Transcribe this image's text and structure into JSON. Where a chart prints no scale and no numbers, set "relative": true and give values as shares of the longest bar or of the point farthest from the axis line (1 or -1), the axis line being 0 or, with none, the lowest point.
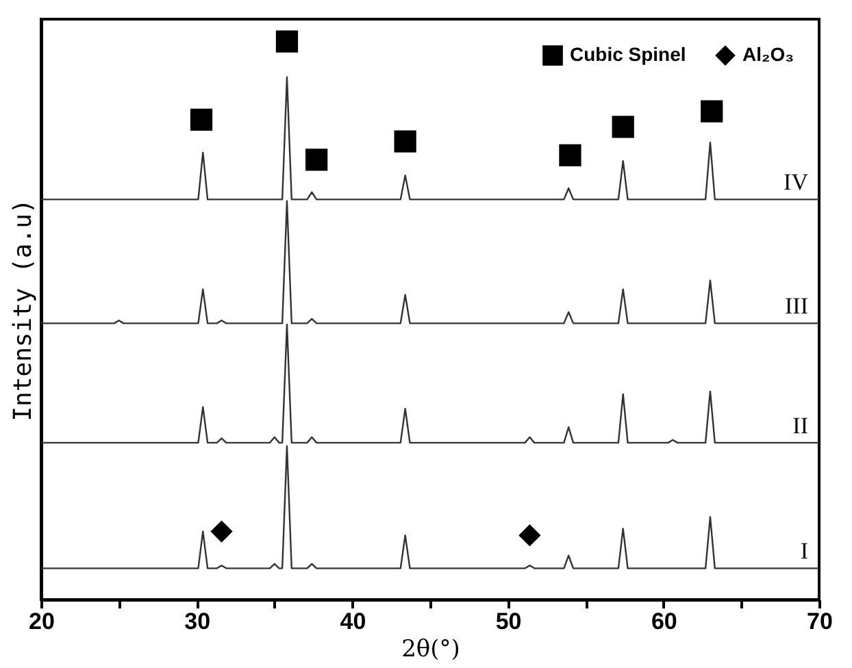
{
  "chart_data": {
    "type": "line",
    "relative": true,
    "xlabel": "2θ(°)",
    "ylabel": "Intensity (a.u)",
    "xlim": [
      20,
      70
    ],
    "xticks": [
      20,
      {
        "value": 25,
        "label": null
      },
      30,
      {
        "value": 35,
        "label": null
      },
      40,
      {
        "value": 45,
        "label": null
      },
      50,
      {
        "value": 55,
        "label": null
      },
      60,
      {
        "value": 65,
        "label": null
      },
      70
    ],
    "grid": false,
    "legend": "top right",
    "marker": "none",
    "series": [
      {
        "name": "I",
        "color": "#333333",
        "x": [
          20,
          30.1,
          30.4,
          30.7,
          31.3,
          31.6,
          31.9,
          34.7,
          35.0,
          35.3,
          35.5,
          35.8,
          36.1,
          37.1,
          37.4,
          37.7,
          43.1,
          43.4,
          43.7,
          51.1,
          51.4,
          51.7,
          53.6,
          53.9,
          54.2,
          57.1,
          57.4,
          57.7,
          62.7,
          63.0,
          63.3,
          70
        ],
        "values": [
          0.056,
          0.056,
          0.122,
          0.056,
          0.056,
          0.061,
          0.056,
          0.056,
          0.064,
          0.056,
          0.056,
          0.275,
          0.056,
          0.056,
          0.064,
          0.056,
          0.056,
          0.115,
          0.056,
          0.056,
          0.061,
          0.056,
          0.056,
          0.079,
          0.056,
          0.056,
          0.127,
          0.056,
          0.056,
          0.148,
          0.056,
          0.056
        ]
      },
      {
        "name": "II",
        "color": "#333333",
        "x": [
          20,
          30.1,
          30.4,
          30.7,
          31.3,
          31.6,
          31.9,
          34.7,
          35.0,
          35.3,
          35.5,
          35.8,
          36.1,
          37.1,
          37.4,
          37.7,
          43.1,
          43.4,
          43.7,
          51.1,
          51.4,
          51.7,
          53.6,
          53.9,
          54.2,
          57.1,
          57.4,
          57.7,
          60.3,
          60.6,
          60.9,
          62.7,
          63.0,
          63.3,
          70
        ],
        "values": [
          0.281,
          0.281,
          0.345,
          0.281,
          0.281,
          0.289,
          0.281,
          0.281,
          0.291,
          0.281,
          0.281,
          0.493,
          0.281,
          0.281,
          0.291,
          0.281,
          0.281,
          0.342,
          0.281,
          0.281,
          0.291,
          0.281,
          0.281,
          0.309,
          0.281,
          0.281,
          0.368,
          0.281,
          0.281,
          0.286,
          0.281,
          0.281,
          0.373,
          0.281,
          0.281
        ]
      },
      {
        "name": "III",
        "color": "#333333",
        "x": [
          20,
          24.7,
          25.0,
          25.3,
          30.1,
          30.4,
          30.7,
          31.3,
          31.6,
          31.9,
          35.5,
          35.8,
          36.1,
          37.1,
          37.4,
          37.7,
          43.1,
          43.4,
          43.7,
          53.6,
          53.9,
          54.2,
          57.1,
          57.4,
          57.7,
          62.7,
          63.0,
          63.3,
          70
        ],
        "values": [
          0.495,
          0.495,
          0.5,
          0.495,
          0.495,
          0.556,
          0.495,
          0.495,
          0.5,
          0.495,
          0.495,
          0.714,
          0.495,
          0.495,
          0.503,
          0.495,
          0.495,
          0.546,
          0.495,
          0.495,
          0.515,
          0.495,
          0.495,
          0.556,
          0.495,
          0.495,
          0.572,
          0.495,
          0.495
        ]
      },
      {
        "name": "IV",
        "color": "#333333",
        "x": [
          20,
          30.1,
          30.4,
          30.7,
          35.5,
          35.8,
          36.1,
          37.1,
          37.4,
          37.7,
          43.1,
          43.4,
          43.7,
          53.6,
          53.9,
          54.2,
          57.1,
          57.4,
          57.7,
          62.7,
          63.0,
          63.3,
          70
        ],
        "values": [
          0.717,
          0.717,
          0.801,
          0.717,
          0.717,
          0.936,
          0.717,
          0.717,
          0.73,
          0.717,
          0.717,
          0.76,
          0.717,
          0.717,
          0.737,
          0.717,
          0.717,
          0.786,
          0.717,
          0.717,
          0.819,
          0.717,
          0.717
        ]
      },
      {
        "name": "Cubic Spinel",
        "type": "scatter",
        "marker": "square",
        "color": "#000000",
        "x": [
          30.3,
          35.8,
          37.7,
          43.4,
          54.0,
          57.4,
          63.1
        ],
        "values": [
          0.86,
          1.0,
          0.788,
          0.821,
          0.796,
          0.847,
          0.875
        ]
      },
      {
        "name": "Al₂O₃",
        "type": "scatter",
        "marker": "diamond",
        "color": "#000000",
        "x": [
          31.6,
          51.4
        ],
        "values": [
          0.122,
          0.115
        ]
      }
    ]
  }
}
